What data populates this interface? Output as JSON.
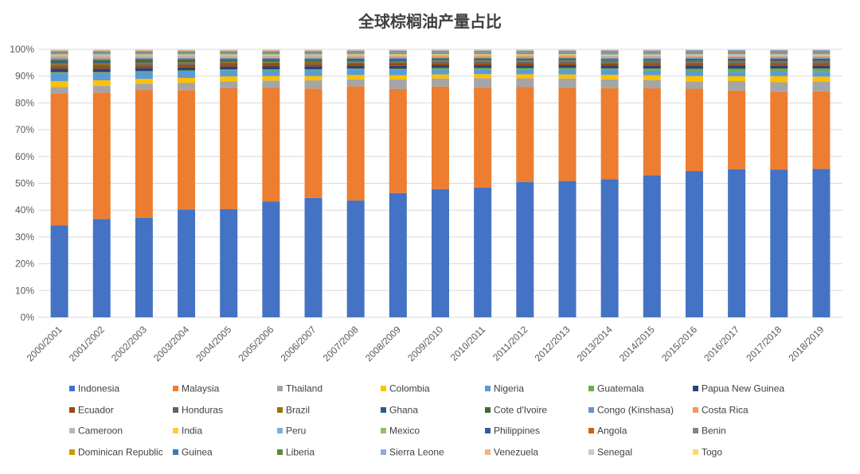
{
  "chart_data": {
    "type": "bar",
    "stacked": true,
    "normalized": true,
    "title": "全球棕榈油产量占比",
    "xlabel": "",
    "ylabel": "",
    "ylim": [
      0,
      100
    ],
    "grid": true,
    "legend": "bottom",
    "yticks": [
      "0%",
      "10%",
      "20%",
      "30%",
      "40%",
      "50%",
      "60%",
      "70%",
      "80%",
      "90%",
      "100%"
    ],
    "categories": [
      "2000/2001",
      "2001/2002",
      "2002/2003",
      "2003/2004",
      "2004/2005",
      "2005/2006",
      "2006/2007",
      "2007/2008",
      "2008/2009",
      "2009/2010",
      "2010/2011",
      "2011/2012",
      "2012/2013",
      "2013/2014",
      "2014/2015",
      "2015/2016",
      "2016/2017",
      "2017/2018",
      "2018/2019"
    ],
    "series": [
      {
        "name": "Indonesia",
        "color": "#4472c4",
        "values": [
          34.2,
          36.2,
          37,
          40,
          40.3,
          43.3,
          44.2,
          43.5,
          46,
          47.5,
          48,
          49.8,
          50.5,
          51.5,
          53.2,
          54.2,
          55,
          55.1,
          55.5
        ]
      },
      {
        "name": "Malaysia",
        "color": "#ed7d31",
        "values": [
          49,
          46.5,
          47.5,
          44.2,
          45,
          42.6,
          40.5,
          42.5,
          38.5,
          38,
          37,
          35,
          34.5,
          34,
          32.5,
          30.5,
          29.2,
          29,
          29
        ]
      },
      {
        "name": "Thailand",
        "color": "#a5a5a5",
        "values": [
          2.3,
          2.5,
          2.3,
          2.7,
          2.6,
          2.7,
          3,
          2.6,
          3.5,
          3,
          3.5,
          3.2,
          3.5,
          3.3,
          3.1,
          2.7,
          3.5,
          3.5,
          3.7
        ]
      },
      {
        "name": "Colombia",
        "color": "#ffc000",
        "values": [
          2.2,
          2,
          1.8,
          1.8,
          1.8,
          1.7,
          1.6,
          1.6,
          1.6,
          1.5,
          1.5,
          1.5,
          1.5,
          1.7,
          1.8,
          2,
          1.8,
          2.3,
          1.8
        ]
      },
      {
        "name": "Nigeria",
        "color": "#5b9bd5",
        "values": [
          3,
          2.7,
          2.6,
          2.5,
          2.3,
          2.1,
          2.1,
          2,
          2,
          1.9,
          1.8,
          1.8,
          1.8,
          1.8,
          1.7,
          1.8,
          1.7,
          1.7,
          1.8
        ]
      },
      {
        "name": "Guatemala",
        "color": "#70ad47",
        "values": [
          0.3,
          0.3,
          0.3,
          0.3,
          0.3,
          0.4,
          0.4,
          0.4,
          0.4,
          0.5,
          0.5,
          0.5,
          0.6,
          0.6,
          0.8,
          0.9,
          1.1,
          1.1,
          1.2
        ]
      },
      {
        "name": "Papua New Guinea",
        "color": "#264478",
        "values": [
          1.3,
          1.2,
          1.2,
          1.1,
          1.1,
          1.1,
          1.1,
          1.1,
          1.1,
          1,
          1,
          1,
          1,
          1,
          1,
          1,
          1,
          1,
          1
        ]
      },
      {
        "name": "Ecuador",
        "color": "#9e480e",
        "values": [
          0.9,
          0.9,
          0.9,
          0.9,
          0.9,
          0.9,
          0.8,
          0.8,
          0.8,
          0.8,
          0.8,
          0.8,
          0.8,
          0.8,
          0.8,
          0.8,
          0.8,
          0.8,
          0.8
        ]
      },
      {
        "name": "Honduras",
        "color": "#636363",
        "values": [
          0.6,
          0.6,
          0.6,
          0.6,
          0.5,
          0.5,
          0.5,
          0.5,
          0.5,
          0.5,
          0.5,
          0.5,
          0.5,
          0.5,
          0.5,
          0.6,
          0.6,
          0.6,
          0.6
        ]
      },
      {
        "name": "Brazil",
        "color": "#997300",
        "values": [
          0.5,
          0.5,
          0.5,
          0.4,
          0.4,
          0.4,
          0.4,
          0.4,
          0.4,
          0.4,
          0.4,
          0.4,
          0.4,
          0.4,
          0.5,
          0.5,
          0.5,
          0.5,
          0.5
        ]
      },
      {
        "name": "Ghana",
        "color": "#255e91",
        "values": [
          0.5,
          0.5,
          0.5,
          0.4,
          0.4,
          0.4,
          0.4,
          0.4,
          0.4,
          0.3,
          0.3,
          0.3,
          0.3,
          0.3,
          0.3,
          0.3,
          0.3,
          0.3,
          0.3
        ]
      },
      {
        "name": "Cote d'Ivoire",
        "color": "#43682b",
        "values": [
          0.8,
          0.8,
          0.7,
          0.7,
          0.6,
          0.6,
          0.6,
          0.5,
          0.5,
          0.5,
          0.5,
          0.5,
          0.5,
          0.5,
          0.5,
          0.5,
          0.5,
          0.5,
          0.5
        ]
      },
      {
        "name": "Congo (Kinshasa)",
        "color": "#698ed0",
        "values": [
          0.5,
          0.5,
          0.5,
          0.5,
          0.4,
          0.4,
          0.4,
          0.4,
          0.4,
          0.4,
          0.4,
          0.4,
          0.4,
          0.4,
          0.4,
          0.4,
          0.4,
          0.4,
          0.4
        ]
      },
      {
        "name": "Costa Rica",
        "color": "#f1975a",
        "values": [
          0.6,
          0.6,
          0.5,
          0.5,
          0.5,
          0.5,
          0.5,
          0.5,
          0.5,
          0.5,
          0.5,
          0.5,
          0.5,
          0.5,
          0.5,
          0.5,
          0.5,
          0.5,
          0.5
        ]
      },
      {
        "name": "Cameroon",
        "color": "#b7b7b7",
        "values": [
          0.6,
          0.6,
          0.5,
          0.5,
          0.5,
          0.5,
          0.5,
          0.5,
          0.5,
          0.4,
          0.4,
          0.4,
          0.4,
          0.4,
          0.4,
          0.4,
          0.4,
          0.4,
          0.4
        ]
      },
      {
        "name": "India",
        "color": "#ffcd33",
        "values": [
          0.2,
          0.2,
          0.2,
          0.2,
          0.2,
          0.2,
          0.2,
          0.2,
          0.2,
          0.2,
          0.2,
          0.2,
          0.2,
          0.2,
          0.2,
          0.2,
          0.2,
          0.2,
          0.2
        ]
      },
      {
        "name": "Peru",
        "color": "#7cafdd",
        "values": [
          0.1,
          0.1,
          0.1,
          0.1,
          0.1,
          0.1,
          0.1,
          0.1,
          0.1,
          0.1,
          0.1,
          0.1,
          0.1,
          0.2,
          0.2,
          0.2,
          0.2,
          0.2,
          0.2
        ]
      },
      {
        "name": "Mexico",
        "color": "#8cc168",
        "values": [
          0.1,
          0.1,
          0.1,
          0.1,
          0.1,
          0.1,
          0.1,
          0.1,
          0.1,
          0.1,
          0.1,
          0.1,
          0.1,
          0.2,
          0.2,
          0.2,
          0.2,
          0.2,
          0.2
        ]
      },
      {
        "name": "Philippines",
        "color": "#335aa1",
        "values": [
          0.1,
          0.1,
          0.1,
          0.1,
          0.1,
          0.1,
          0.1,
          0.1,
          0.1,
          0.1,
          0.1,
          0.1,
          0.1,
          0.1,
          0.1,
          0.1,
          0.1,
          0.1,
          0.1
        ]
      },
      {
        "name": "Angola",
        "color": "#d26012",
        "values": [
          0.2,
          0.2,
          0.2,
          0.2,
          0.2,
          0.2,
          0.2,
          0.2,
          0.2,
          0.2,
          0.2,
          0.2,
          0.2,
          0.2,
          0.2,
          0.2,
          0.2,
          0.2,
          0.2
        ]
      },
      {
        "name": "Benin",
        "color": "#848484",
        "values": [
          0.2,
          0.2,
          0.2,
          0.2,
          0.2,
          0.2,
          0.2,
          0.2,
          0.2,
          0.2,
          0.2,
          0.2,
          0.2,
          0.2,
          0.2,
          0.2,
          0.2,
          0.2,
          0.2
        ]
      },
      {
        "name": "Dominican Republic",
        "color": "#cc9a00",
        "values": [
          0.1,
          0.1,
          0.1,
          0.1,
          0.1,
          0.1,
          0.1,
          0.1,
          0.1,
          0.1,
          0.1,
          0.1,
          0.1,
          0.1,
          0.1,
          0.1,
          0.1,
          0.1,
          0.1
        ]
      },
      {
        "name": "Guinea",
        "color": "#327dc2",
        "values": [
          0.2,
          0.2,
          0.2,
          0.2,
          0.2,
          0.2,
          0.2,
          0.2,
          0.2,
          0.2,
          0.2,
          0.2,
          0.2,
          0.2,
          0.2,
          0.2,
          0.2,
          0.2,
          0.2
        ]
      },
      {
        "name": "Liberia",
        "color": "#5a8a39",
        "values": [
          0.2,
          0.2,
          0.2,
          0.2,
          0.2,
          0.2,
          0.2,
          0.2,
          0.2,
          0.2,
          0.2,
          0.2,
          0.2,
          0.2,
          0.2,
          0.2,
          0.2,
          0.2,
          0.2
        ]
      },
      {
        "name": "Sierra Leone",
        "color": "#8faadc",
        "values": [
          0.3,
          0.3,
          0.3,
          0.3,
          0.3,
          0.3,
          0.3,
          0.3,
          0.3,
          0.3,
          0.3,
          0.3,
          0.3,
          0.3,
          0.3,
          0.3,
          0.3,
          0.3,
          0.3
        ]
      },
      {
        "name": "Venezuela",
        "color": "#f4b183",
        "values": [
          0.3,
          0.3,
          0.3,
          0.3,
          0.3,
          0.3,
          0.3,
          0.2,
          0.2,
          0.2,
          0.2,
          0.2,
          0.2,
          0.2,
          0.2,
          0.1,
          0.1,
          0.1,
          0.1
        ]
      },
      {
        "name": "Senegal",
        "color": "#c9c9c9",
        "values": [
          0.1,
          0.1,
          0.1,
          0.1,
          0.1,
          0.1,
          0.1,
          0.1,
          0.1,
          0.1,
          0.1,
          0.1,
          0.1,
          0.1,
          0.1,
          0.1,
          0.1,
          0.1,
          0.1
        ]
      },
      {
        "name": "Togo",
        "color": "#ffd966",
        "values": [
          0.1,
          0.1,
          0.1,
          0.1,
          0.1,
          0.1,
          0.1,
          0.1,
          0.1,
          0.1,
          0.1,
          0.1,
          0.1,
          0.1,
          0.1,
          0.1,
          0.1,
          0.1,
          0.1
        ]
      }
    ]
  }
}
